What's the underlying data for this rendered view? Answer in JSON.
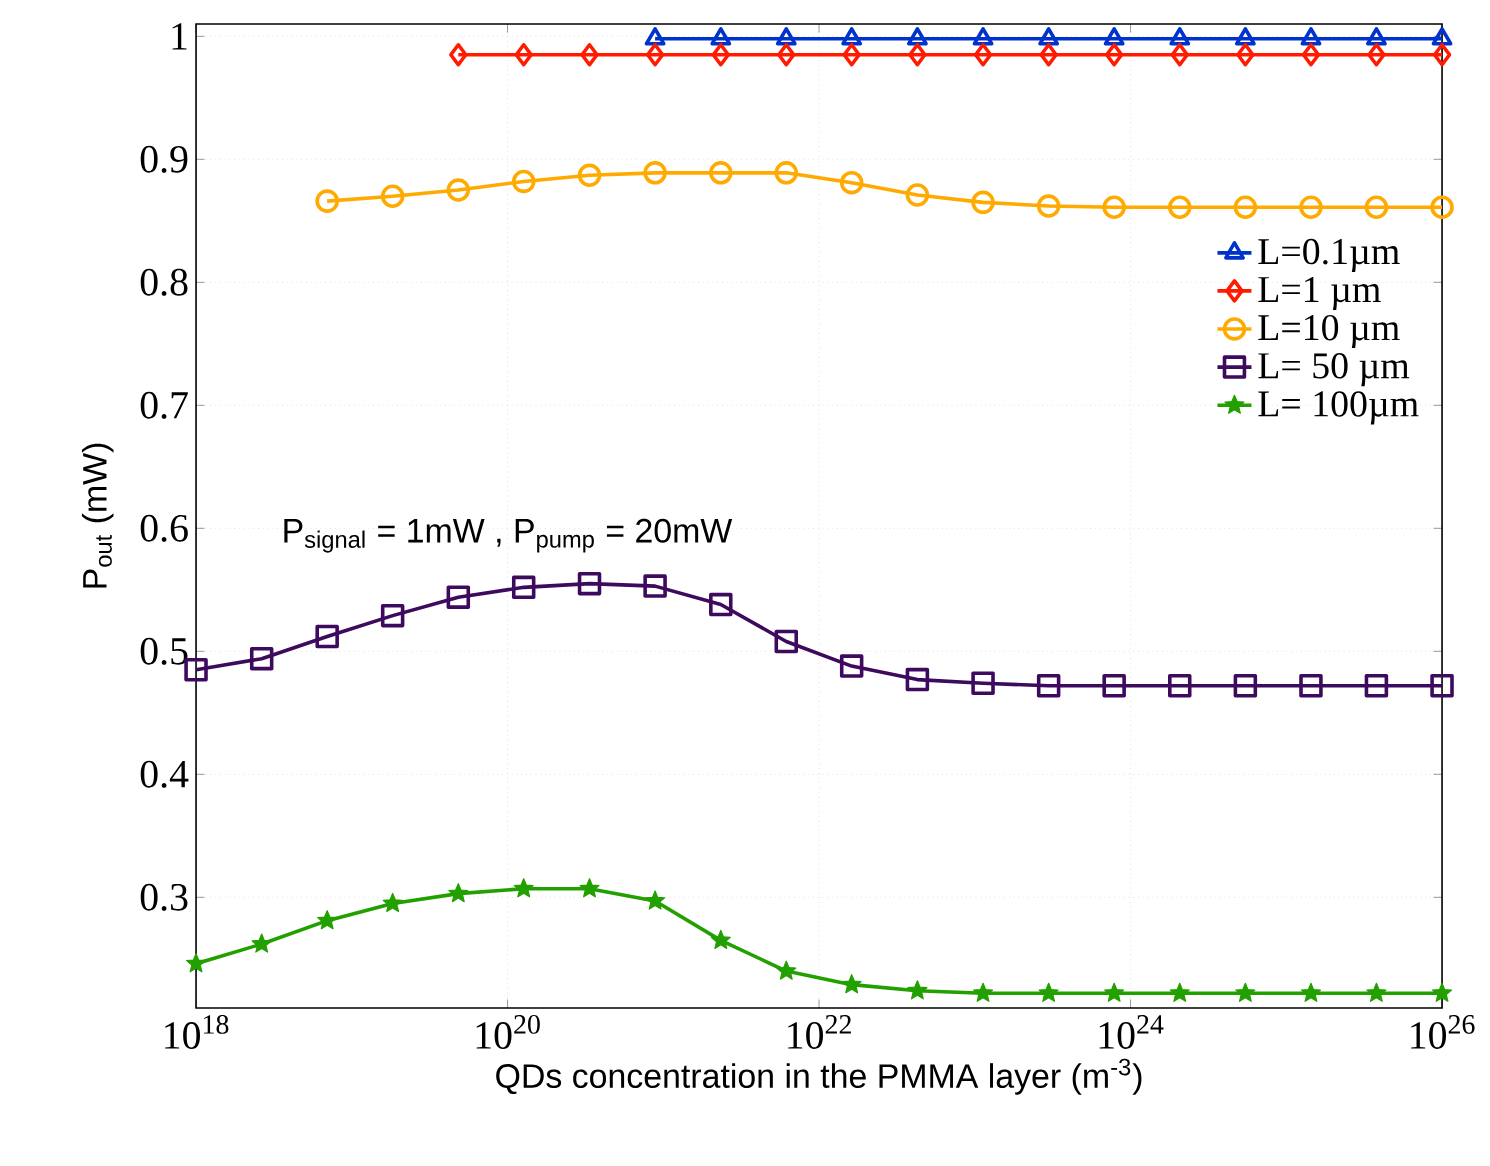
{
  "chart_data": {
    "type": "line",
    "xlabel": "QDs concentration in the PMMA layer (m$^{-3}$)",
    "ylabel": "P$_{out}$ (mW)",
    "annotations": [
      "P$_{signal}$ = 1mW , P$_{pump}$ = 20mW"
    ],
    "log": "x",
    "grid": true,
    "legend": "right",
    "x": [
      1e+18,
      2.64e+18,
      6.95e+18,
      1.83e+19,
      4.83e+19,
      1.27e+20,
      3.36e+20,
      8.86e+20,
      2.34e+21,
      6.16e+21,
      1.62e+22,
      4.28e+22,
      1.13e+23,
      2.98e+23,
      7.85e+23,
      2.07e+24,
      5.46e+24,
      1.44e+25,
      3.79e+25,
      1e+26
    ],
    "xlim": [
      1e+18,
      1e+26
    ],
    "xticks": [
      {
        "value": 1e+18,
        "label": "10$^{18}$"
      },
      {
        "value": 1e+20,
        "label": "10$^{20}$"
      },
      {
        "value": 1e+22,
        "label": "10$^{22}$"
      },
      {
        "value": 1e+24,
        "label": "10$^{24}$"
      },
      {
        "value": 1e+26,
        "label": "10$^{26}$"
      }
    ],
    "ylim": [
      0.21,
      1.01
    ],
    "yticks": [
      0.3,
      0.4,
      0.5,
      0.6,
      0.7,
      0.8,
      0.9,
      1
    ],
    "series": [
      {
        "name": "L=0.1µm",
        "color": "#0033cc",
        "marker": "triangle",
        "values": [
          null,
          null,
          null,
          null,
          null,
          null,
          null,
          0.998,
          0.998,
          0.998,
          0.998,
          0.998,
          0.998,
          0.998,
          0.998,
          0.998,
          0.998,
          0.998,
          0.998,
          0.998
        ]
      },
      {
        "name": "L=1 µm",
        "color": "#ff1a00",
        "marker": "diamond",
        "values": [
          null,
          null,
          null,
          null,
          0.985,
          0.985,
          0.985,
          0.985,
          0.985,
          0.985,
          0.985,
          0.985,
          0.985,
          0.985,
          0.985,
          0.985,
          0.985,
          0.985,
          0.985,
          0.985
        ]
      },
      {
        "name": "L=10 µm",
        "color": "#ffaa00",
        "marker": "circle",
        "values": [
          null,
          null,
          0.866,
          0.87,
          0.875,
          0.882,
          0.887,
          0.889,
          0.889,
          0.889,
          0.881,
          0.871,
          0.865,
          0.862,
          0.861,
          0.861,
          0.861,
          0.861,
          0.861,
          0.861
        ]
      },
      {
        "name": "L= 50 µm",
        "color": "#3d0a5e",
        "marker": "square",
        "values": [
          0.485,
          0.494,
          0.512,
          0.529,
          0.544,
          0.552,
          0.555,
          0.553,
          0.538,
          0.508,
          0.488,
          0.477,
          0.474,
          0.472,
          0.472,
          0.472,
          0.472,
          0.472,
          0.472,
          0.472
        ]
      },
      {
        "name": "L= 100µm",
        "color": "#22a000",
        "marker": "star",
        "values": [
          0.246,
          0.262,
          0.281,
          0.295,
          0.303,
          0.307,
          0.307,
          0.297,
          0.265,
          0.24,
          0.229,
          0.224,
          0.222,
          0.222,
          0.222,
          0.222,
          0.222,
          0.222,
          0.222,
          0.222
        ]
      }
    ]
  }
}
